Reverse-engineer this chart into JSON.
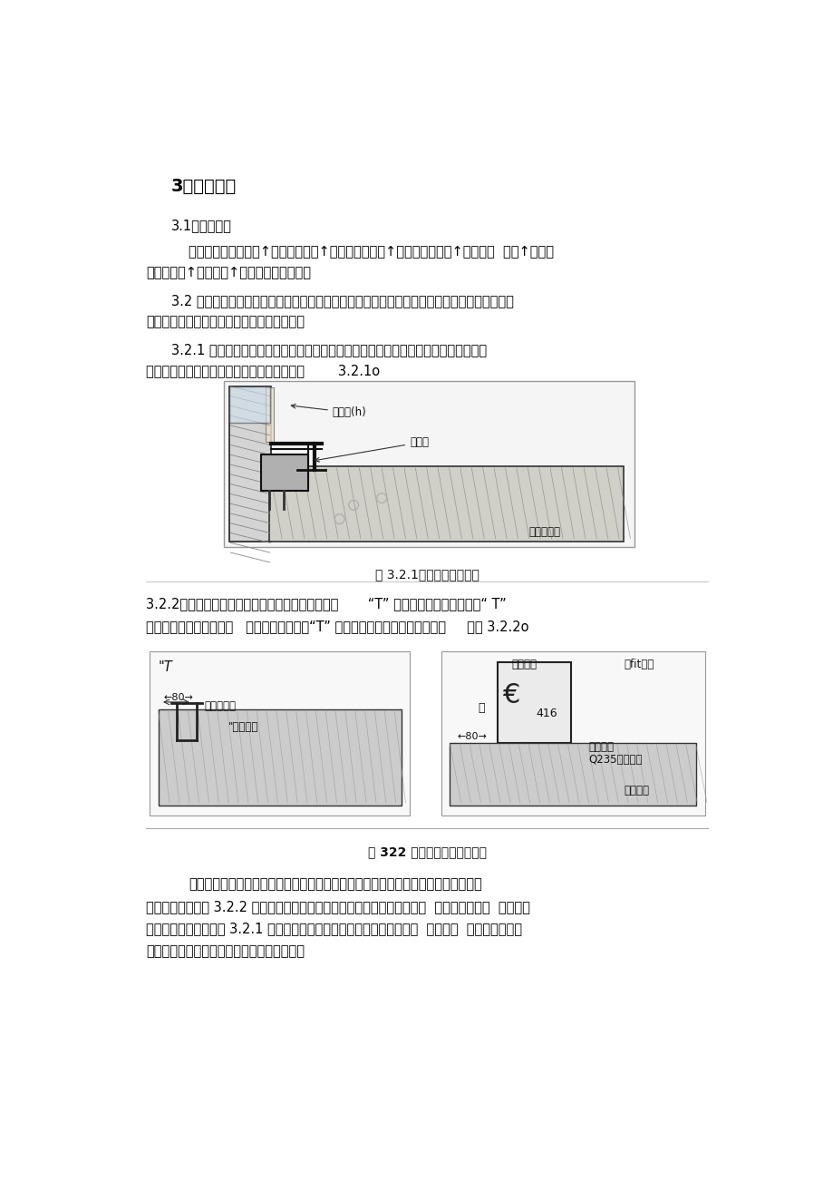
{
  "title": "3、操作工艺",
  "bg_color": "#ffffff",
  "text_color": "#000000",
  "font_size_title": 14,
  "font_size_body": 10.5,
  "sec31": "3.1工艺流程：",
  "flow_line1": "安装各楼层紧固鐵件↑横紖龙骨装配↑安装紖向主龙骨↑安装横向次龙骨↑安装镇锌  钉板↑安装保",
  "flow_line2": "温防火矿棉↑安装玻璃↑安盖板及装饰压条。",
  "sec32_line1": "3.2 安装各楼层紧固鐵件：主体结构施工时埋件预埋形式及紧固鐵件与埋件连接方法，均要按设",
  "sec32_line2": "计图纸要求进行操作，一般有以下两种方式：",
  "sec321_line1": "3.2.1 在主体结构的每层现浇混凝土楼板或梁内预埋鐵件，角锉连接件与预埋件焼接，",
  "sec321_line2": "然后用螺栓（镇锌）再与紖向龙骨连接，见图        3.2.1o",
  "fig1_caption": "图 3.2.1紧固件与预件焼接",
  "sec322_line1": "3.2.2在主体结构的每层现浇混凝土楼板或梁内预埋       “T” 形槽埋件，角锉连接件与“ T”",
  "sec322_line2": "形槽通过镇锌螺栓连接，   即把螺栓预先穿入“T” 形槽内，再与角锉连接件连接，     见图 3.2.2o",
  "fig2_caption": "图 322 紧固件与埋件螺栓连接",
  "final_line1": "紧固件的安装是玻璃幕墙安装过程中的主要环节，直接影响到幕墙与结构主体连接牢",
  "final_line2": "固和安全程度。图 3.2.2 安装时将紧固鐵件在纵横两方向中心线进行对正，  初拧螺栓，校正  紧固件位",
  "final_line3": "置后，再拧紧螺栓。图 3.2.1 紧固件安装时，也是先对正纵横中心线后，  再进行电  焼焼接，焼缝长",
  "final_line4": "度、高度及电焼条的质量均按结构焼缝要求。"
}
